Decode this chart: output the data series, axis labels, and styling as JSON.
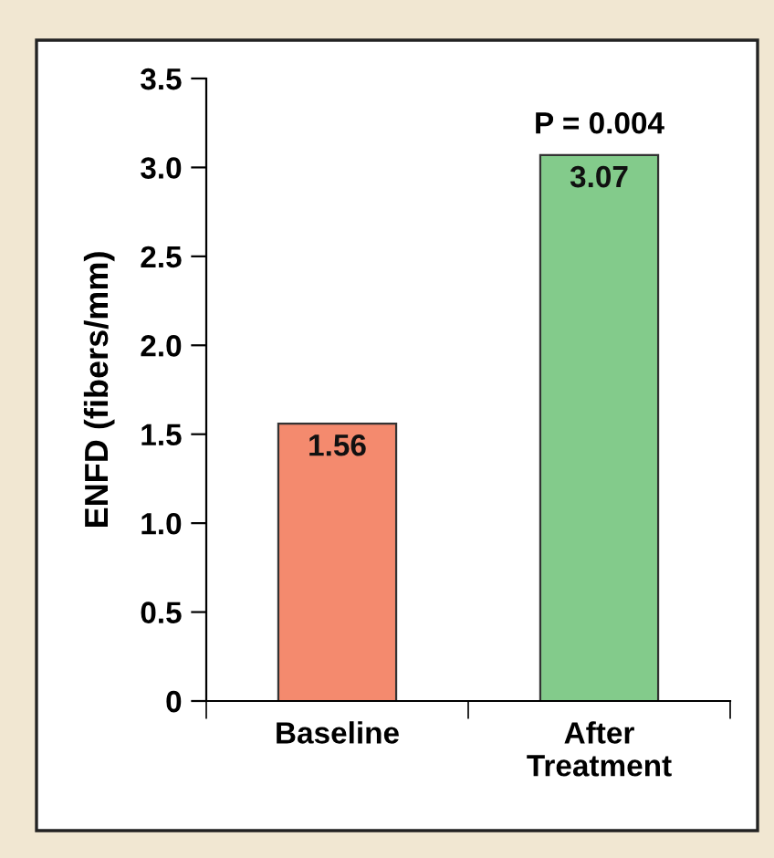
{
  "chart_data": {
    "type": "bar",
    "ylabel": "ENFD (fibers/mm)",
    "categories": [
      "Baseline",
      "After\nTreatment"
    ],
    "values": [
      1.56,
      3.07
    ],
    "colors": [
      "#f48a6e",
      "#83cb8b"
    ],
    "ylim": [
      0,
      3.5
    ],
    "yticks": [
      0,
      0.5,
      {
        "value": 1,
        "label": "1.0"
      },
      1.5,
      {
        "value": 2,
        "label": "2.0"
      },
      2.5,
      {
        "value": 3,
        "label": "3.0"
      },
      3.5
    ],
    "data_labels": true,
    "grid": false,
    "legend": false,
    "annotations": [
      {
        "text": "P = 0.004",
        "x": "After\nTreatment",
        "y": 3.07
      }
    ]
  }
}
